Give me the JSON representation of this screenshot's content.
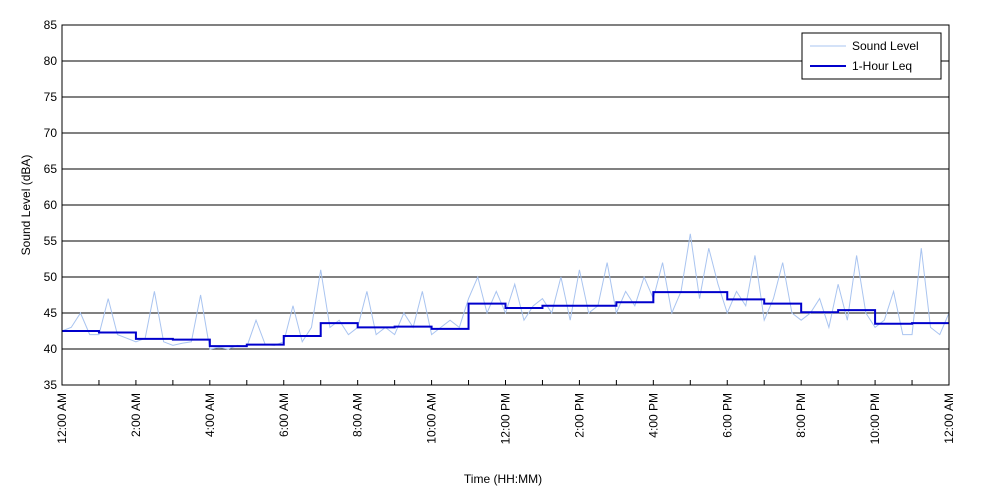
{
  "chart_data": {
    "type": "line",
    "xlabel": "Time (HH:MM)",
    "ylabel": "Sound Level (dBA)",
    "xlim": [
      0,
      24
    ],
    "ylim": [
      35,
      85
    ],
    "xticks": [
      {
        "value": 0,
        "label": "12:00 AM"
      },
      {
        "value": 2,
        "label": "2:00 AM"
      },
      {
        "value": 4,
        "label": "4:00 AM"
      },
      {
        "value": 6,
        "label": "6:00 AM"
      },
      {
        "value": 8,
        "label": "8:00 AM"
      },
      {
        "value": 10,
        "label": "10:00 AM"
      },
      {
        "value": 12,
        "label": "12:00 PM"
      },
      {
        "value": 14,
        "label": "2:00 PM"
      },
      {
        "value": 16,
        "label": "4:00 PM"
      },
      {
        "value": 18,
        "label": "6:00 PM"
      },
      {
        "value": 20,
        "label": "8:00 PM"
      },
      {
        "value": 22,
        "label": "10:00 PM"
      },
      {
        "value": 24,
        "label": "12:00 AM"
      }
    ],
    "yticks": [
      35,
      40,
      45,
      50,
      55,
      60,
      65,
      70,
      75,
      80,
      85
    ],
    "grid": true,
    "legend": "upper right",
    "series": [
      {
        "name": "Sound Level",
        "color": "#a9c4f0",
        "style": "line",
        "x": [
          0,
          0.25,
          0.5,
          0.75,
          1,
          1.25,
          1.5,
          1.75,
          2,
          2.25,
          2.5,
          2.75,
          3,
          3.25,
          3.5,
          3.75,
          4,
          4.25,
          4.5,
          4.75,
          5,
          5.25,
          5.5,
          5.75,
          6,
          6.25,
          6.5,
          6.75,
          7,
          7.25,
          7.5,
          7.75,
          8,
          8.25,
          8.5,
          8.75,
          9,
          9.25,
          9.5,
          9.75,
          10,
          10.25,
          10.5,
          10.75,
          11,
          11.25,
          11.5,
          11.75,
          12,
          12.25,
          12.5,
          12.75,
          13,
          13.25,
          13.5,
          13.75,
          14,
          14.25,
          14.5,
          14.75,
          15,
          15.25,
          15.5,
          15.75,
          16,
          16.25,
          16.5,
          16.75,
          17,
          17.25,
          17.5,
          17.75,
          18,
          18.25,
          18.5,
          18.75,
          19,
          19.25,
          19.5,
          19.75,
          20,
          20.25,
          20.5,
          20.75,
          21,
          21.25,
          21.5,
          21.75,
          22,
          22.25,
          22.5,
          22.75,
          23,
          23.25,
          23.5,
          23.75,
          24
        ],
        "values": [
          42.5,
          43,
          45,
          42,
          42,
          47,
          42,
          41.5,
          41,
          41.5,
          48,
          41,
          40.5,
          40.8,
          41,
          47.5,
          40,
          40.2,
          40,
          40.5,
          40.3,
          44,
          40.6,
          40.5,
          41,
          46,
          41,
          43,
          51,
          43,
          44,
          42,
          43,
          48,
          42,
          43,
          42,
          45,
          43,
          48,
          42,
          43,
          44,
          43,
          47,
          50,
          45,
          48,
          45,
          49,
          44,
          46,
          47,
          45,
          50,
          44,
          51,
          45,
          46,
          52,
          45,
          48,
          46,
          50,
          47,
          52,
          45,
          48,
          56,
          47,
          54,
          49,
          45,
          48,
          46,
          53,
          44,
          47,
          52,
          45,
          44,
          45,
          47,
          43,
          49,
          44,
          53,
          45,
          43,
          44,
          48,
          42,
          42,
          54,
          43,
          42,
          45
        ]
      },
      {
        "name": "1-Hour Leq",
        "color": "#0000cc",
        "style": "step",
        "x": [
          0,
          1,
          2,
          3,
          4,
          5,
          6,
          7,
          8,
          9,
          10,
          11,
          12,
          13,
          14,
          15,
          16,
          17,
          18,
          19,
          20,
          21,
          22,
          23
        ],
        "values": [
          42.5,
          42.3,
          41.4,
          41.3,
          40.4,
          40.6,
          41.8,
          43.6,
          43.0,
          43.1,
          42.8,
          46.3,
          45.7,
          46.0,
          46.0,
          46.5,
          47.9,
          47.9,
          46.9,
          46.3,
          45.1,
          45.4,
          43.5,
          43.6
        ]
      }
    ]
  }
}
